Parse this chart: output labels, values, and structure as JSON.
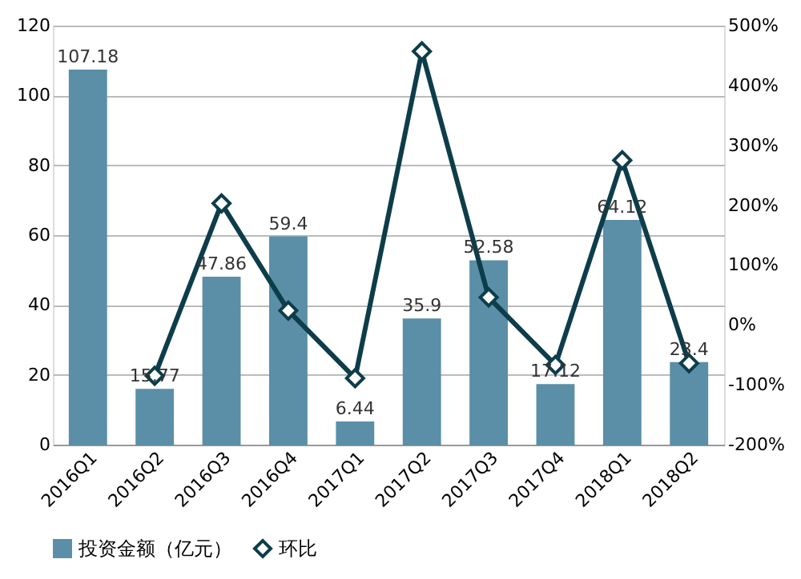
{
  "chart_data": {
    "type": "bar",
    "categories": [
      "2016Q1",
      "2016Q2",
      "2016Q3",
      "2016Q4",
      "2017Q1",
      "2017Q2",
      "2017Q3",
      "2017Q4",
      "2018Q1",
      "2018Q2"
    ],
    "series": [
      {
        "name": "投资金额（亿元）",
        "color": "#5b8fa8",
        "values": [
          107.18,
          15.77,
          47.86,
          59.4,
          6.44,
          35.9,
          52.58,
          17.12,
          64.12,
          23.4
        ],
        "value_labels": [
          "107.18",
          "15.77",
          "47.86",
          "59.4",
          "6.44",
          "35.9",
          "52.58",
          "17.12",
          "64.12",
          "23.4"
        ]
      },
      {
        "name": "环比",
        "type": "line",
        "axis": "y2",
        "color": "#0d3d4a",
        "marker": "diamond",
        "values": [
          null,
          -85,
          203,
          24,
          -89,
          457,
          46,
          -67,
          275,
          -64
        ]
      }
    ],
    "ylim": [
      0,
      120
    ],
    "yticks": [
      0,
      20,
      40,
      60,
      80,
      100,
      120
    ],
    "y2lim": [
      -200,
      500
    ],
    "y2ticks": [
      {
        "value": -200,
        "label": "-200%"
      },
      {
        "value": -100,
        "label": "-100%"
      },
      {
        "value": 0,
        "label": "0%"
      },
      {
        "value": 100,
        "label": "100%"
      },
      {
        "value": 200,
        "label": "200%"
      },
      {
        "value": 300,
        "label": "300%"
      },
      {
        "value": 400,
        "label": "400%"
      },
      {
        "value": 500,
        "label": "500%"
      }
    ],
    "grid": "y",
    "legend": "bottom"
  }
}
